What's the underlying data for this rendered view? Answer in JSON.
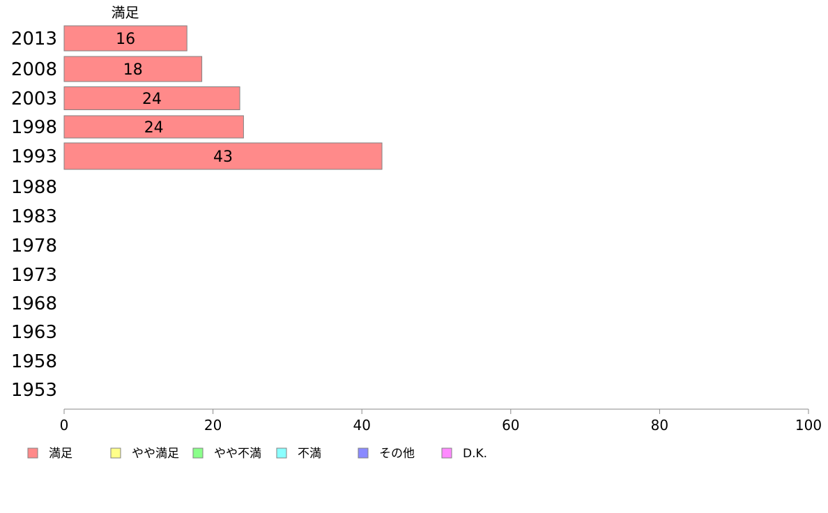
{
  "chart_data": {
    "type": "bar",
    "orientation": "horizontal",
    "stacked": true,
    "categories": [
      "2013",
      "2008",
      "2003",
      "1998",
      "1993",
      "1988",
      "1983",
      "1978",
      "1973",
      "1968",
      "1963",
      "1958",
      "1953"
    ],
    "series": [
      {
        "name": "満足",
        "color": "#ff8a8a",
        "values": [
          16,
          18,
          24,
          24,
          43,
          null,
          null,
          null,
          null,
          null,
          null,
          null,
          null
        ]
      },
      {
        "name": "やや満足",
        "color": "#ffff8a",
        "values": [
          null,
          null,
          null,
          null,
          null,
          null,
          null,
          null,
          null,
          null,
          null,
          null,
          null
        ]
      },
      {
        "name": "やや不満",
        "color": "#8aff8a",
        "values": [
          null,
          null,
          null,
          null,
          null,
          null,
          null,
          null,
          null,
          null,
          null,
          null,
          null
        ]
      },
      {
        "name": "不満",
        "color": "#8affff",
        "values": [
          null,
          null,
          null,
          null,
          null,
          null,
          null,
          null,
          null,
          null,
          null,
          null,
          null
        ]
      },
      {
        "name": "その他",
        "color": "#8a8aff",
        "values": [
          null,
          null,
          null,
          null,
          null,
          null,
          null,
          null,
          null,
          null,
          null,
          null,
          null
        ]
      },
      {
        "name": "D.K.",
        "color": "#ff8aff",
        "values": [
          null,
          null,
          null,
          null,
          null,
          null,
          null,
          null,
          null,
          null,
          null,
          null,
          null
        ]
      }
    ],
    "bar_lengths": [
      16.5,
      18.5,
      23.6,
      24.1,
      42.7
    ],
    "series_header": "満足",
    "xlim": [
      0,
      100
    ],
    "xticks": [
      0,
      20,
      40,
      60,
      80,
      100
    ],
    "grid": false,
    "legend_position": "bottom"
  }
}
